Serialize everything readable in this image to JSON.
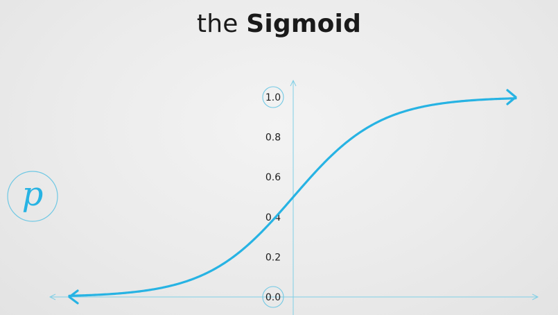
{
  "title": {
    "prefix": "the",
    "emphasis": "Sigmoid"
  },
  "chart_data": {
    "type": "line",
    "title": "the Sigmoid",
    "xlabel": "",
    "ylabel": "p",
    "function": "sigmoid",
    "ylim": [
      0,
      1
    ],
    "y_ticks": [
      "0.0",
      "0.2",
      "0.4",
      "0.6",
      "0.8",
      "1.0"
    ],
    "circled_ticks": [
      "0.0",
      "1.0"
    ],
    "grid": false,
    "colors": {
      "curve": "#27b3e3",
      "axis": "#7fcfe6",
      "title": "#1a1a1a",
      "tick_text": "#1a1a1a"
    }
  }
}
